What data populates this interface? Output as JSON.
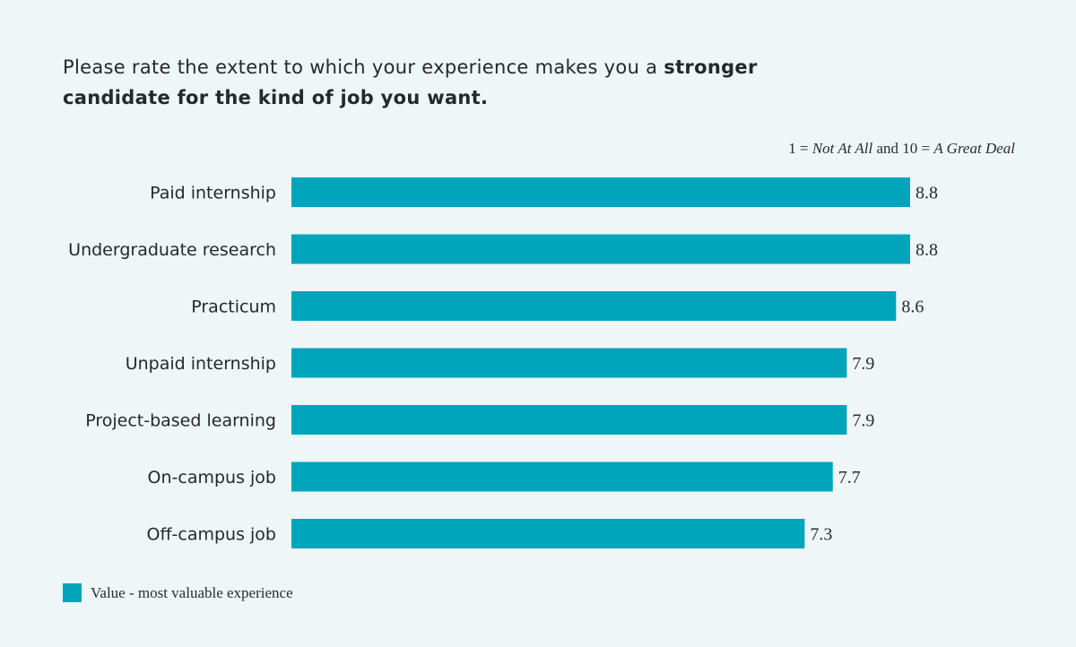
{
  "title": {
    "normal": "Please rate the extent to which your experience makes you a ",
    "bold": "stronger candidate for the kind of job you want."
  },
  "scale_note": {
    "p1": "1 = ",
    "i1": "Not At All",
    "p2": " and 10 = ",
    "i2": "A Great Deal"
  },
  "legend": {
    "label": "Value - most valuable experience",
    "color": "#00a5bb"
  },
  "chart_data": {
    "type": "bar",
    "orientation": "horizontal",
    "categories": [
      "Paid internship",
      "Undergraduate research",
      "Practicum",
      "Unpaid internship",
      "Project-based learning",
      "On-campus job",
      "Off-campus job"
    ],
    "values": [
      8.8,
      8.8,
      8.6,
      7.9,
      7.9,
      7.7,
      7.3
    ],
    "value_labels": [
      "8.8",
      "8.8",
      "8.6",
      "7.9",
      "7.9",
      "7.7",
      "7.3"
    ],
    "series": [
      {
        "name": "Value - most valuable experience",
        "values": [
          8.8,
          8.8,
          8.6,
          7.9,
          7.9,
          7.7,
          7.3
        ]
      }
    ],
    "xlim": [
      0,
      10
    ],
    "grid": false,
    "legend": "bottom-left",
    "bar_color": "#00a5bb"
  }
}
